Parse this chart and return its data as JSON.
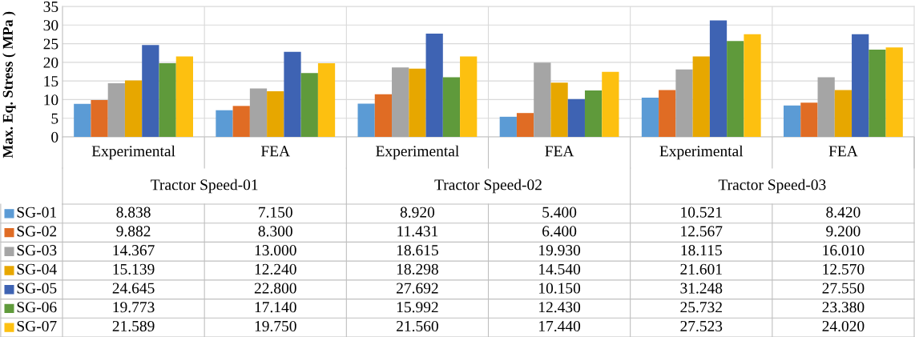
{
  "chart_data": {
    "type": "bar",
    "ylabel": "Max. Eq. Stress ( MPa )",
    "categories": [
      "Experimental",
      "FEA",
      "Experimental",
      "FEA",
      "Experimental",
      "FEA"
    ],
    "annotations": [
      "Tractor Speed-01",
      "Tractor Speed-02",
      "Tractor Speed-03"
    ],
    "ylim": [
      0,
      35
    ],
    "yticks": [
      0,
      5,
      10,
      15,
      20,
      25,
      30,
      35
    ],
    "grid": true,
    "legend": "bottom left",
    "series": [
      {
        "name": "SG-01",
        "color": "#5b9bd5",
        "values": [
          8.838,
          7.15,
          8.92,
          5.4,
          10.521,
          8.42
        ],
        "value_labels": [
          "8.838",
          "7.150",
          "8.920",
          "5.400",
          "10.521",
          "8.420"
        ]
      },
      {
        "name": "SG-02",
        "color": "#e06c24",
        "values": [
          9.882,
          8.3,
          11.431,
          6.4,
          12.567,
          9.2
        ],
        "value_labels": [
          "9.882",
          "8.300",
          "11.431",
          "6.400",
          "12.567",
          "9.200"
        ]
      },
      {
        "name": "SG-03",
        "color": "#a5a5a5",
        "values": [
          14.367,
          13.0,
          18.615,
          19.93,
          18.115,
          16.01
        ],
        "value_labels": [
          "14.367",
          "13.000",
          "18.615",
          "19.930",
          "18.115",
          "16.010"
        ]
      },
      {
        "name": "SG-04",
        "color": "#e7a700",
        "values": [
          15.139,
          12.24,
          18.298,
          14.54,
          21.601,
          12.57
        ],
        "value_labels": [
          "15.139",
          "12.240",
          "18.298",
          "14.540",
          "21.601",
          "12.570"
        ]
      },
      {
        "name": "SG-05",
        "color": "#3e63b3",
        "values": [
          24.645,
          22.8,
          27.692,
          10.15,
          31.248,
          27.55
        ],
        "value_labels": [
          "24.645",
          "22.800",
          "27.692",
          "10.150",
          "31.248",
          "27.550"
        ]
      },
      {
        "name": "SG-06",
        "color": "#5f9a3b",
        "values": [
          19.773,
          17.14,
          15.992,
          12.43,
          25.732,
          23.38
        ],
        "value_labels": [
          "19.773",
          "17.140",
          "15.992",
          "12.430",
          "25.732",
          "23.380"
        ]
      },
      {
        "name": "SG-07",
        "color": "#fdc010",
        "values": [
          21.589,
          19.75,
          21.56,
          17.44,
          27.523,
          24.02
        ],
        "value_labels": [
          "21.589",
          "19.750",
          "21.560",
          "17.440",
          "27.523",
          "24.020"
        ]
      }
    ]
  }
}
